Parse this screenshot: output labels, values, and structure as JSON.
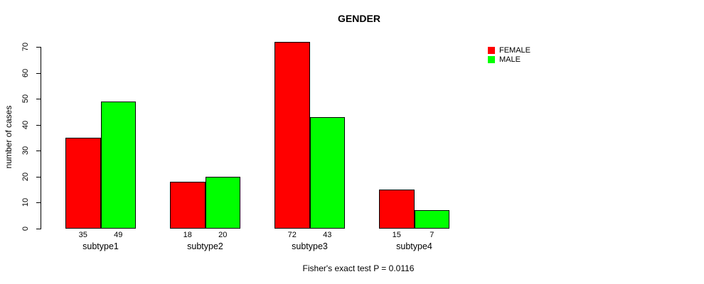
{
  "chart_data": {
    "type": "bar",
    "title": "GENDER",
    "ylabel": "number of cases",
    "xlabel": "",
    "categories": [
      "subtype1",
      "subtype2",
      "subtype3",
      "subtype4"
    ],
    "series": [
      {
        "name": "FEMALE",
        "color": "#ff0000",
        "values": [
          35,
          18,
          72,
          15
        ]
      },
      {
        "name": "MALE",
        "color": "#00ff00",
        "values": [
          49,
          20,
          43,
          7
        ]
      }
    ],
    "yticks": [
      0,
      10,
      20,
      30,
      40,
      50,
      60,
      70
    ],
    "ylim": [
      0,
      70
    ],
    "grid": false,
    "bar_value_labels": true,
    "legend_position": "top-right",
    "annotation": "Fisher's exact test P = 0.0116",
    "colors": {
      "female": "#ff0000",
      "male": "#00ff00",
      "axis": "#000000",
      "background": "#ffffff"
    }
  }
}
